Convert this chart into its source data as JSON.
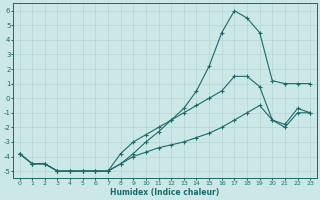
{
  "xlabel": "Humidex (Indice chaleur)",
  "bg_color": "#cce8e6",
  "grid_color": "#b8d8d6",
  "line_color": "#1a6b6b",
  "xlim": [
    -0.5,
    23.5
  ],
  "ylim": [
    -5.5,
    6.5
  ],
  "xticks": [
    0,
    1,
    2,
    3,
    4,
    5,
    6,
    7,
    8,
    9,
    10,
    11,
    12,
    13,
    14,
    15,
    16,
    17,
    18,
    19,
    20,
    21,
    22,
    23
  ],
  "yticks": [
    -5,
    -4,
    -3,
    -2,
    -1,
    0,
    1,
    2,
    3,
    4,
    5,
    6
  ],
  "line1_x": [
    0,
    1,
    2,
    3,
    4,
    5,
    6,
    7,
    8,
    9,
    10,
    11,
    12,
    13,
    14,
    15,
    16,
    17,
    18,
    19,
    20,
    21,
    22,
    23
  ],
  "line1_y": [
    -3.8,
    -4.5,
    -4.5,
    -5,
    -5,
    -5,
    -5,
    -5,
    -4.5,
    -3.8,
    -3.0,
    -2.3,
    -1.5,
    -0.7,
    0.5,
    2.2,
    4.5,
    6.0,
    5.5,
    4.5,
    1.2,
    1.0,
    1.0,
    1.0
  ],
  "line2_x": [
    0,
    1,
    2,
    3,
    4,
    5,
    6,
    7,
    8,
    9,
    10,
    11,
    12,
    13,
    14,
    15,
    16,
    17,
    18,
    19,
    20,
    21,
    22,
    23
  ],
  "line2_y": [
    -3.8,
    -4.5,
    -4.5,
    -5,
    -5,
    -5,
    -5,
    -5,
    -4.5,
    -4.0,
    -3.7,
    -3.4,
    -3.2,
    -3.0,
    -2.7,
    -2.4,
    -2.0,
    -1.5,
    -1.0,
    -0.5,
    -1.5,
    -2.0,
    -1.0,
    -1.0
  ],
  "line3_x": [
    0,
    1,
    2,
    3,
    4,
    5,
    6,
    7,
    8,
    9,
    10,
    11,
    12,
    13,
    14,
    15,
    16,
    17,
    18,
    19,
    20,
    21,
    22,
    23
  ],
  "line3_y": [
    -3.8,
    -4.5,
    -4.5,
    -5,
    -5,
    -5,
    -5,
    -5,
    -3.8,
    -3.0,
    -2.5,
    -2.0,
    -1.5,
    -1.0,
    -0.5,
    0.0,
    0.5,
    1.5,
    1.5,
    0.8,
    -1.5,
    -1.8,
    -0.7,
    -1.0
  ]
}
